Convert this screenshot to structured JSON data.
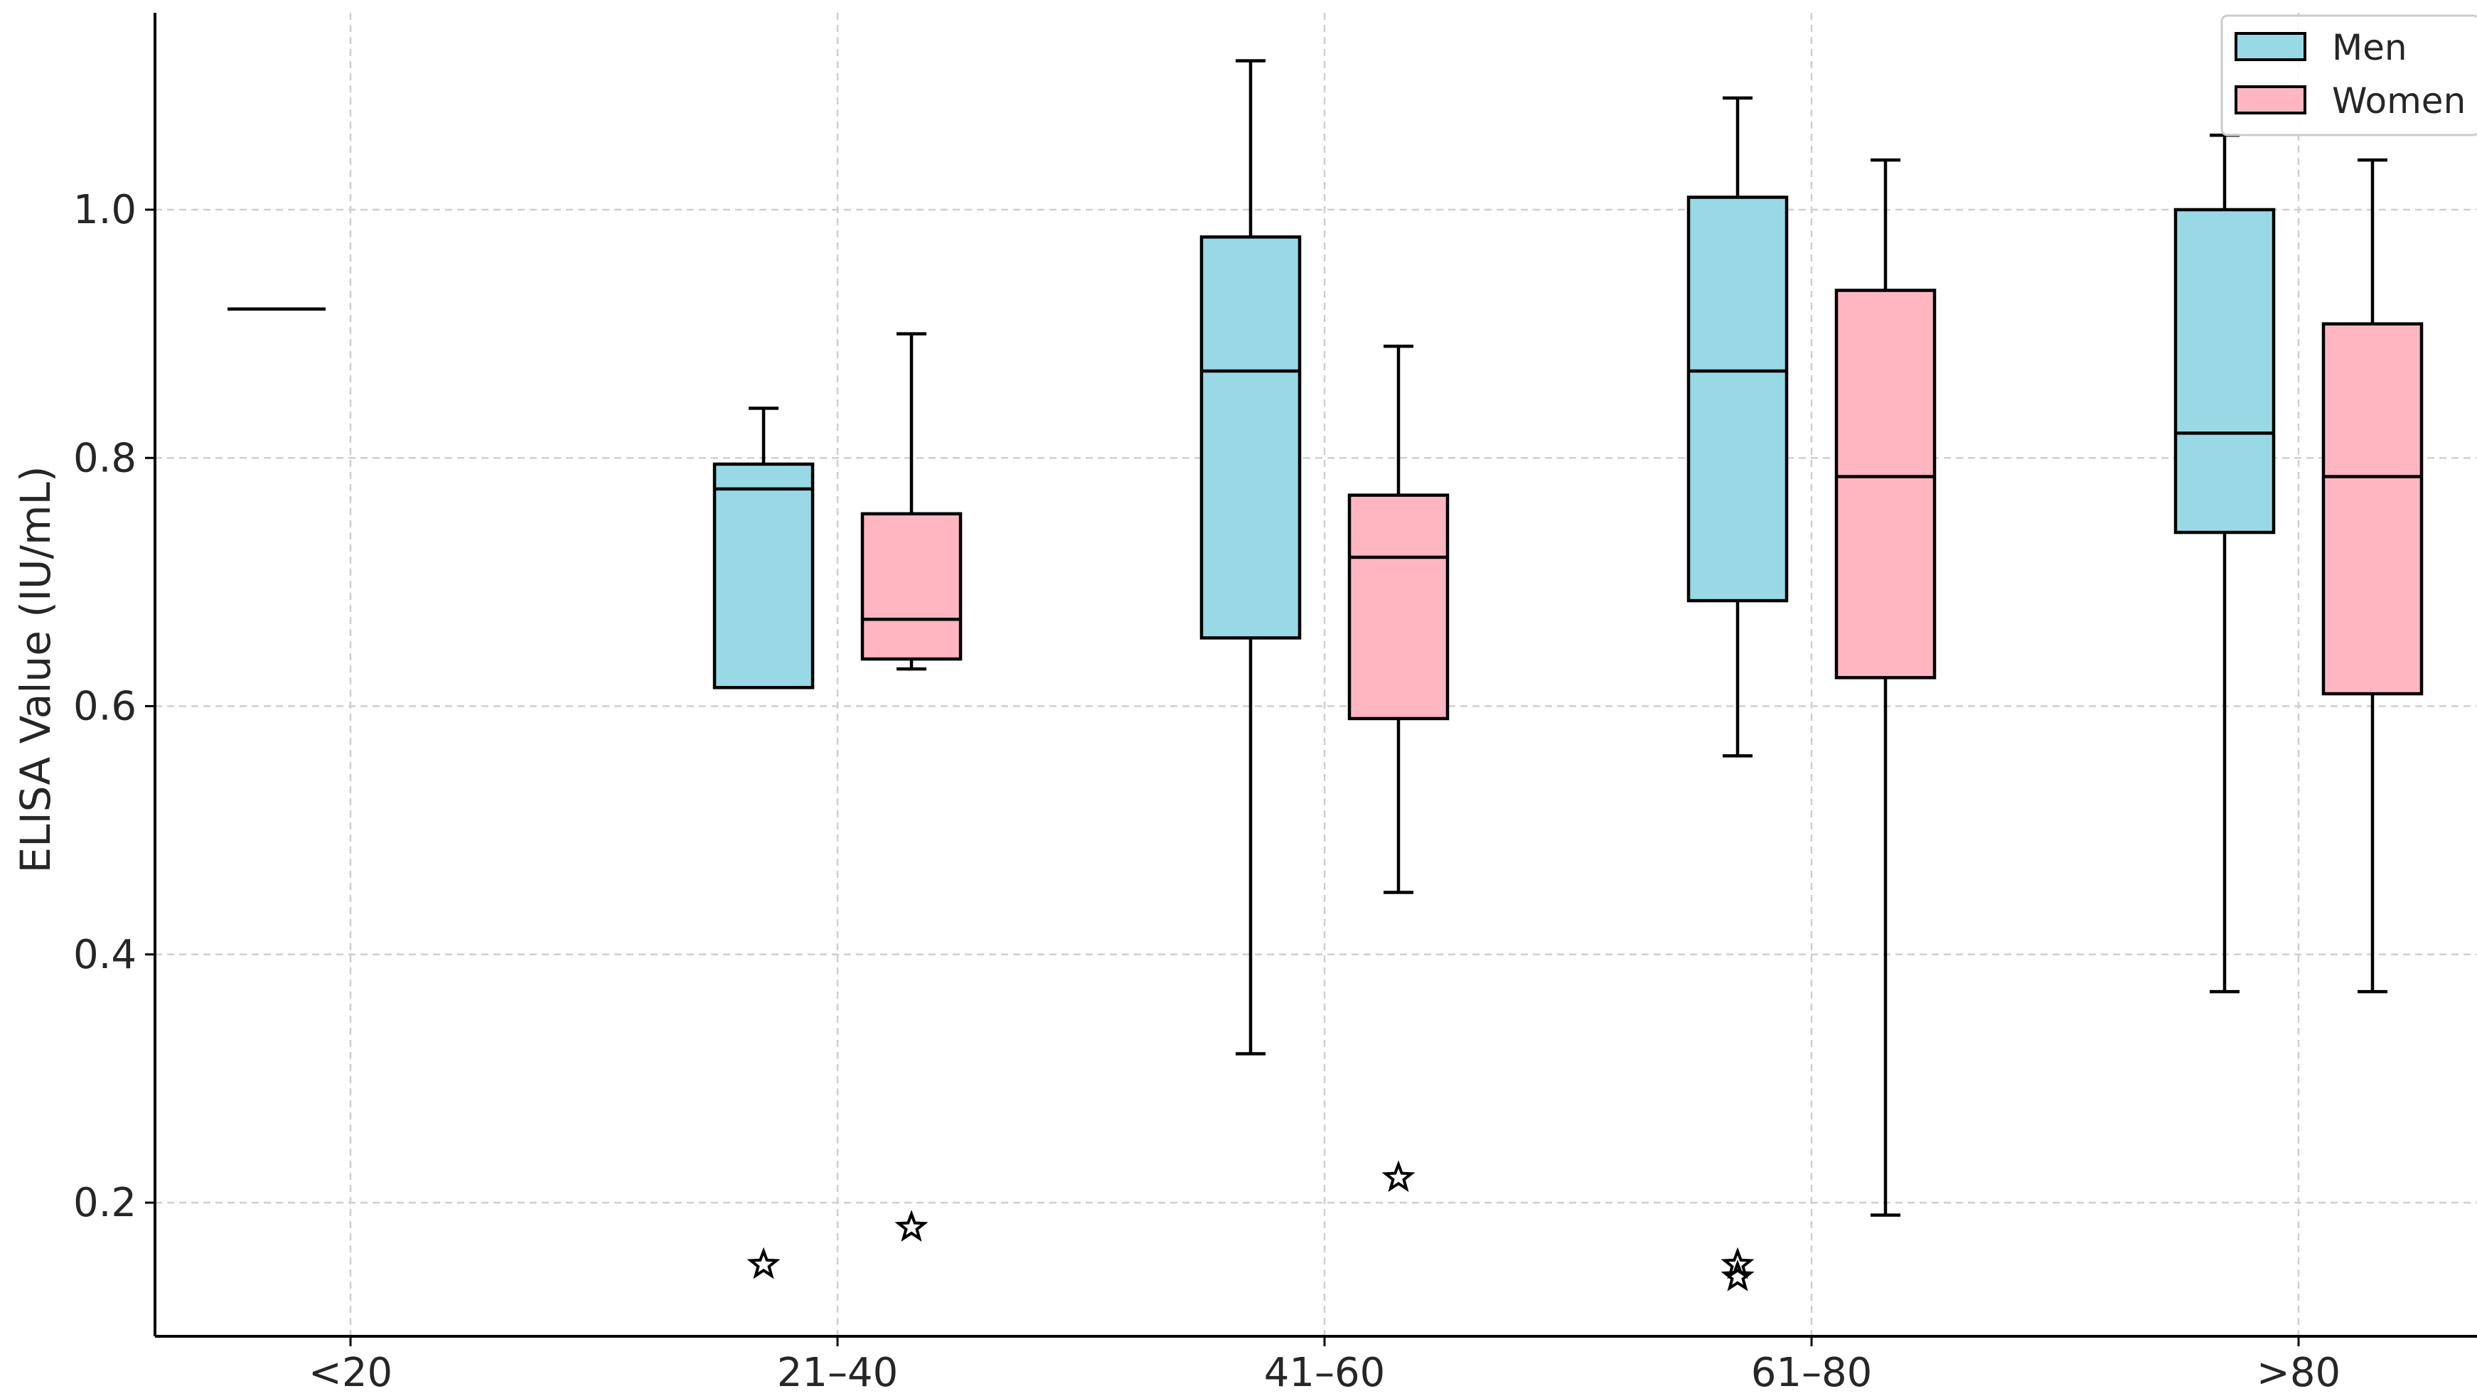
{
  "chart_data": {
    "type": "boxplot",
    "title": "",
    "xlabel": "",
    "ylabel": "ELISA Value (IU/mL)",
    "ylim": [
      0.09,
      1.16
    ],
    "yticks": [
      0.2,
      0.4,
      0.6,
      0.8,
      1.0
    ],
    "ytick_labels": [
      "0.2",
      "0.4",
      "0.6",
      "0.8",
      "1.0"
    ],
    "categories": [
      "<20",
      "21–40",
      "41–60",
      "61–80",
      ">80"
    ],
    "grid": true,
    "legend_position": "top-right",
    "series": [
      {
        "name": "Men",
        "color": "#99D9E6",
        "boxes": [
          {
            "category": "<20",
            "min": 0.92,
            "q1": 0.92,
            "median": 0.92,
            "q3": 0.92,
            "max": 0.92,
            "outliers": []
          },
          {
            "category": "21–40",
            "min": 0.615,
            "q1": 0.615,
            "median": 0.775,
            "q3": 0.795,
            "max": 0.84,
            "outliers": [
              0.15
            ]
          },
          {
            "category": "41–60",
            "min": 0.32,
            "q1": 0.655,
            "median": 0.87,
            "q3": 0.978,
            "max": 1.12,
            "outliers": []
          },
          {
            "category": "61–80",
            "min": 0.56,
            "q1": 0.685,
            "median": 0.87,
            "q3": 1.01,
            "max": 1.09,
            "outliers": [
              0.15,
              0.14
            ]
          },
          {
            "category": ">80",
            "min": 0.37,
            "q1": 0.74,
            "median": 0.82,
            "q3": 1.0,
            "max": 1.06,
            "outliers": []
          }
        ]
      },
      {
        "name": "Women",
        "color": "#FFB6C1",
        "boxes": [
          {
            "category": "21–40",
            "min": 0.63,
            "q1": 0.638,
            "median": 0.67,
            "q3": 0.755,
            "max": 0.9,
            "outliers": [
              0.18
            ]
          },
          {
            "category": "41–60",
            "min": 0.45,
            "q1": 0.59,
            "median": 0.72,
            "q3": 0.77,
            "max": 0.89,
            "outliers": [
              0.22
            ]
          },
          {
            "category": "61–80",
            "min": 0.19,
            "q1": 0.623,
            "median": 0.785,
            "q3": 0.935,
            "max": 1.04,
            "outliers": []
          },
          {
            "category": ">80",
            "min": 0.37,
            "q1": 0.61,
            "median": 0.785,
            "q3": 0.908,
            "max": 1.04,
            "outliers": []
          }
        ]
      }
    ],
    "legend": [
      {
        "label": "Men",
        "color": "#99D9E6"
      },
      {
        "label": "Women",
        "color": "#FFB6C1"
      }
    ]
  }
}
